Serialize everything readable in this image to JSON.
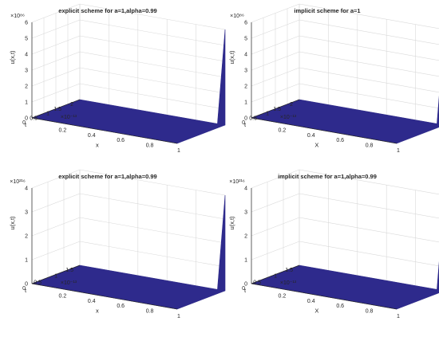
{
  "figure": {
    "background": "#ffffff",
    "surface_color": "#2e2a8c",
    "edge_color": "#2e2a8c",
    "grid_color": "#d9d9d9",
    "axis_color": "#262626"
  },
  "chart_data": [
    {
      "type": "surface3d",
      "title": "explicit scheme for a=1,alpha=0.99",
      "xlabel": "x",
      "ylabel": "t",
      "zlabel": "u(x,t)",
      "xlim": [
        0,
        1
      ],
      "ylim": [
        0,
        2e-13
      ],
      "zlim": [
        0,
        6e+86
      ],
      "x_ticks": [
        "0.2",
        "0.4",
        "0.6",
        "0.8",
        "1"
      ],
      "y_ticks": [
        "0",
        "0.5",
        "1",
        "1.5",
        "2"
      ],
      "y_exponent": "×10⁻¹³",
      "z_ticks": [
        "0",
        "1",
        "2",
        "3",
        "4",
        "5",
        "6"
      ],
      "z_exponent": "×10⁸⁶",
      "grid": true,
      "spike": {
        "x": 1,
        "t": 2e-13,
        "u": 6e+86
      }
    },
    {
      "type": "surface3d",
      "title": "implicit scheme for a=1",
      "xlabel": "X",
      "ylabel": "t",
      "zlabel": "u(x,t)",
      "xlim": [
        0,
        1
      ],
      "ylim": [
        0,
        2e-13
      ],
      "zlim": [
        0,
        6e+86
      ],
      "x_ticks": [
        "0.2",
        "0.4",
        "0.6",
        "0.8",
        "1"
      ],
      "y_ticks": [
        "0",
        "0.5",
        "1",
        "1.5",
        "2"
      ],
      "y_exponent": "×10⁻¹³",
      "z_ticks": [
        "0",
        "1",
        "2",
        "3",
        "4",
        "5",
        "6"
      ],
      "z_exponent": "×10⁸⁶",
      "grid": true,
      "spike": {
        "x": 1,
        "t": 2e-13,
        "u": 6e+86
      }
    },
    {
      "type": "surface3d",
      "title": "explicit scheme for a=1,alpha=0.99",
      "xlabel": "x",
      "ylabel": "t",
      "zlabel": "u(x,t)",
      "xlim": [
        0,
        1
      ],
      "ylim": [
        0,
        1.5e-13
      ],
      "zlim": [
        0,
        4e+216
      ],
      "x_ticks": [
        "0.2",
        "0.4",
        "0.6",
        "0.8",
        "1"
      ],
      "y_ticks": [
        "0",
        "0.5",
        "1",
        "1.5"
      ],
      "y_exponent": "×10⁻¹³",
      "z_ticks": [
        "0",
        "1",
        "2",
        "3",
        "4"
      ],
      "z_exponent": "×10²¹⁶",
      "grid": true,
      "spike": {
        "x": 1,
        "t": 1.5e-13,
        "u": 4e+216
      }
    },
    {
      "type": "surface3d",
      "title": "implicit scheme for a=1,alpha=0.99",
      "xlabel": "X",
      "ylabel": "t",
      "zlabel": "u(x,t)",
      "xlim": [
        0,
        1
      ],
      "ylim": [
        0,
        1.5e-13
      ],
      "zlim": [
        0,
        4e+216
      ],
      "x_ticks": [
        "0.2",
        "0.4",
        "0.6",
        "0.8",
        "1"
      ],
      "y_ticks": [
        "0",
        "0.5",
        "1",
        "1.5"
      ],
      "y_exponent": "×10⁻¹³",
      "z_ticks": [
        "0",
        "1",
        "2",
        "3",
        "4"
      ],
      "z_exponent": "×10²¹⁶",
      "grid": true,
      "spike": {
        "x": 1,
        "t": 1.5e-13,
        "u": 4e+216
      }
    }
  ]
}
